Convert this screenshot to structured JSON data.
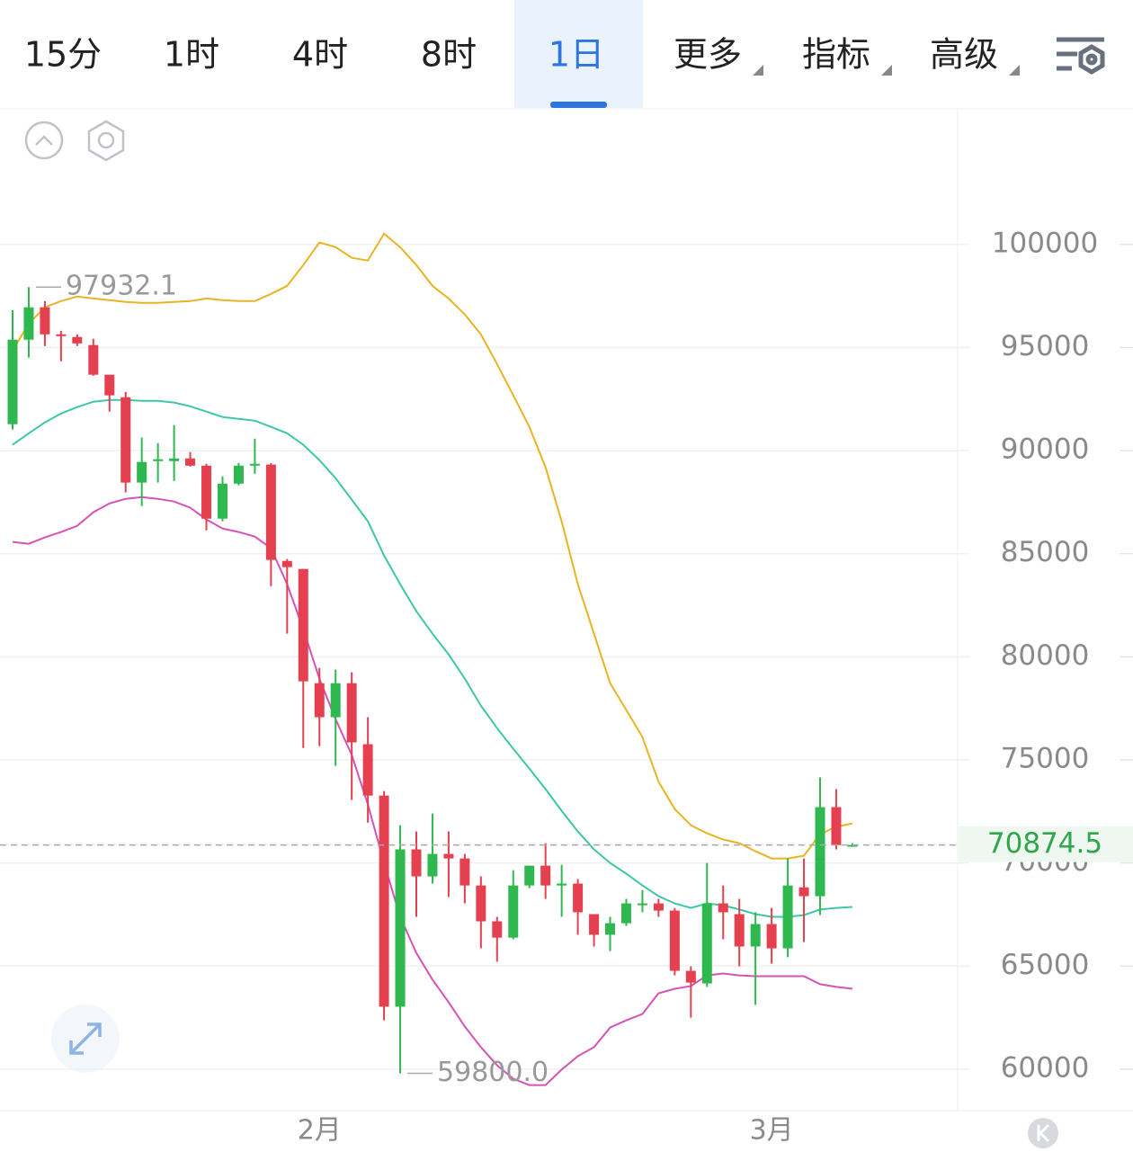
{
  "tabs": [
    "15分",
    "1时",
    "4时",
    "8时",
    "1日",
    "更多",
    "指标",
    "高级"
  ],
  "active_tab": 4,
  "chart_data": {
    "type": "candlestick",
    "categories": [
      null,
      null,
      null,
      null,
      null,
      null,
      null,
      null,
      null,
      null,
      null,
      null,
      null,
      null,
      null,
      null,
      null,
      null,
      null,
      "2月",
      null,
      null,
      null,
      null,
      null,
      null,
      null,
      null,
      null,
      null,
      null,
      null,
      null,
      null,
      null,
      null,
      null,
      null,
      null,
      null,
      null,
      null,
      null,
      null,
      null,
      null,
      null,
      "3月",
      null,
      null,
      null,
      null,
      null
    ],
    "open": [
      91280,
      95380,
      96950,
      95640,
      95510,
      95120,
      93680,
      92590,
      88450,
      89490,
      89490,
      89620,
      89270,
      86700,
      88400,
      89270,
      89320,
      84650,
      84260,
      78720,
      77070,
      78720,
      75760,
      73270,
      63030,
      70660,
      69350,
      70440,
      70220,
      68910,
      67170,
      66380,
      68910,
      69870,
      68910,
      69000,
      67520,
      66520,
      67080,
      67960,
      68040,
      67690,
      64770,
      64160,
      68040,
      67520,
      65950,
      67040,
      65860,
      68820,
      68390,
      72710,
      70870
    ],
    "high": [
      96820,
      97932.1,
      97250,
      95810,
      95640,
      95420,
      93680,
      92850,
      90630,
      90360,
      91240,
      89930,
      89360,
      88750,
      89400,
      90580,
      89400,
      84740,
      84260,
      79460,
      79380,
      79250,
      77070,
      73490,
      71830,
      71530,
      72400,
      71530,
      70440,
      69350,
      67390,
      69650,
      69870,
      70960,
      69910,
      69220,
      67520,
      67390,
      68260,
      68690,
      68260,
      67820,
      64990,
      70000,
      68910,
      68260,
      67610,
      67820,
      70220,
      70220,
      74150,
      73580,
      70960
    ],
    "low": [
      91020,
      94510,
      95070,
      94330,
      95070,
      93630,
      91890,
      87970,
      87310,
      88450,
      88530,
      89230,
      86130,
      86570,
      88320,
      88880,
      83430,
      81120,
      75580,
      75670,
      74710,
      73060,
      71960,
      62370,
      59800,
      67390,
      69000,
      68350,
      68040,
      65860,
      65210,
      66300,
      68780,
      68260,
      67390,
      66520,
      65950,
      65730,
      66950,
      67610,
      67390,
      64550,
      62500,
      63990,
      66300,
      64990,
      63120,
      65120,
      65430,
      66170,
      67480,
      70660,
      70800
    ],
    "close": [
      95380,
      96950,
      95640,
      95550,
      95200,
      93680,
      92680,
      88450,
      89450,
      89580,
      89620,
      89270,
      86700,
      88400,
      89270,
      89360,
      84700,
      84350,
      78810,
      77070,
      78720,
      75850,
      73270,
      63030,
      70660,
      69350,
      70440,
      70220,
      68910,
      67170,
      66380,
      68910,
      69870,
      68910,
      69000,
      67610,
      66520,
      67080,
      68040,
      68040,
      67690,
      64770,
      64200,
      68040,
      67610,
      65950,
      67040,
      65860,
      68910,
      68390,
      72710,
      70870,
      70874.5
    ],
    "up_color": "#2eb84f",
    "down_color": "#e5404f",
    "bands": [
      {
        "color": "#e8b424",
        "values": [
          94850,
          96160,
          96950,
          97250,
          97470,
          97380,
          97300,
          97210,
          97170,
          97170,
          97210,
          97250,
          97380,
          97300,
          97250,
          97250,
          97600,
          97990,
          99000,
          100090,
          99870,
          99350,
          99220,
          100520,
          99870,
          99000,
          97990,
          97380,
          96600,
          95640,
          94200,
          92680,
          91150,
          89190,
          86570,
          83520,
          81120,
          78720,
          77420,
          76110,
          73930,
          72620,
          71830,
          71440,
          71140,
          70960,
          70570,
          70220,
          70220,
          70350,
          71400,
          71750,
          71920
        ]
      },
      {
        "color": "#3cc7a6",
        "values": [
          90280,
          90840,
          91370,
          91800,
          92110,
          92370,
          92460,
          92460,
          92410,
          92410,
          92330,
          92150,
          91890,
          91630,
          91540,
          91450,
          91150,
          90840,
          90280,
          89540,
          88660,
          87620,
          86570,
          84910,
          83520,
          82210,
          81120,
          80120,
          78940,
          77630,
          76540,
          75540,
          74580,
          73580,
          72530,
          71530,
          70660,
          70000,
          69480,
          68910,
          68390,
          68040,
          67820,
          68040,
          67950,
          67740,
          67520,
          67390,
          67390,
          67470,
          67740,
          67820,
          67870
        ]
      },
      {
        "color": "#d553b7",
        "values": [
          85570,
          85480,
          85790,
          86050,
          86350,
          87010,
          87440,
          87660,
          87750,
          87660,
          87530,
          87230,
          86660,
          86220,
          86050,
          85830,
          85260,
          83520,
          81340,
          78940,
          76980,
          75240,
          72840,
          70000,
          67390,
          65640,
          64340,
          63250,
          62070,
          61070,
          60190,
          59540,
          59230,
          59230,
          59980,
          60630,
          61070,
          62020,
          62370,
          62680,
          63680,
          63900,
          64030,
          64550,
          64640,
          64550,
          64510,
          64510,
          64510,
          64510,
          64120,
          63990,
          63900
        ]
      }
    ],
    "annotations": [
      {
        "value": 97932.1,
        "label": "97932.1"
      },
      {
        "value": 59800,
        "label": "59800.0"
      }
    ],
    "current_price": 70874.5,
    "ylim": [
      57990,
      106620
    ],
    "yticks": [
      60000,
      65000,
      70000,
      75000,
      80000,
      85000,
      90000,
      95000,
      100000
    ],
    "grid": true
  }
}
